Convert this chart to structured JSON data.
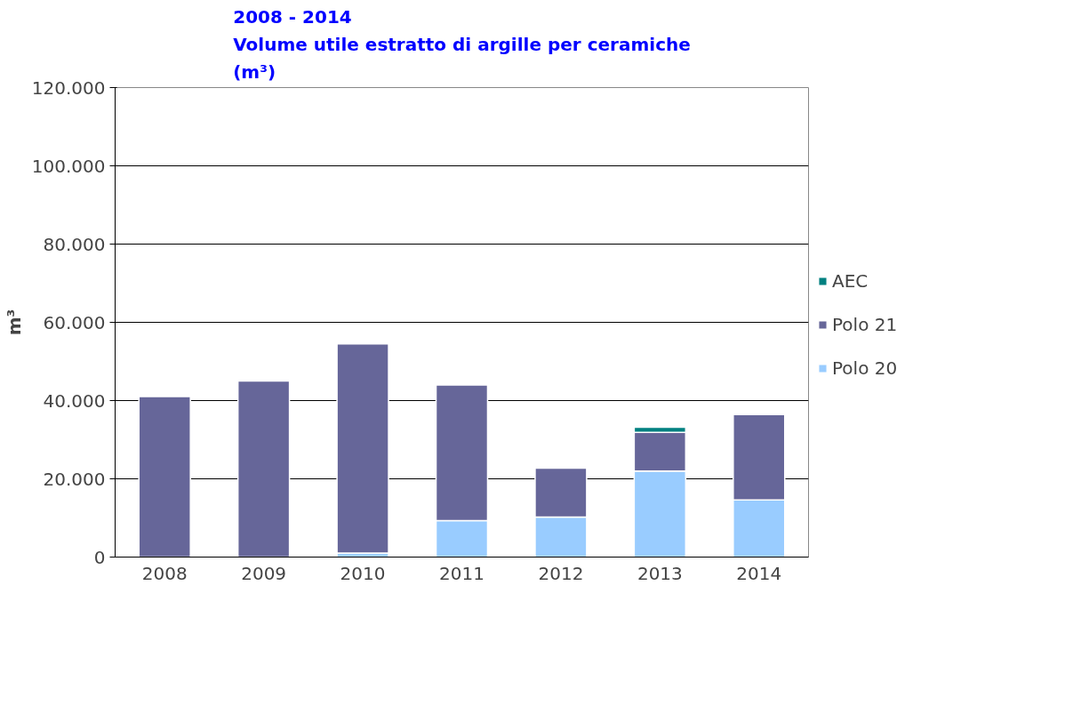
{
  "chart_data": {
    "type": "bar",
    "stacked": true,
    "title": "2008 - 2014\nVolume utile estratto di argille per ceramiche\n(m³)",
    "ylabel": "m³",
    "categories": [
      "2008",
      "2009",
      "2010",
      "2011",
      "2012",
      "2013",
      "2014"
    ],
    "series": [
      {
        "name": "Polo 20",
        "color": "#99ccff",
        "values": [
          null,
          null,
          1000,
          9300,
          10200,
          22000,
          14600
        ]
      },
      {
        "name": "Polo 21",
        "color": "#666699",
        "values": [
          41000,
          45000,
          53500,
          34700,
          12500,
          9900,
          21800
        ]
      },
      {
        "name": "AEC",
        "color": "#008080",
        "values": [
          null,
          null,
          null,
          null,
          null,
          1300,
          null
        ]
      }
    ],
    "ylim": [
      0,
      120000
    ],
    "yticks": [
      {
        "value": 0,
        "label": "0"
      },
      {
        "value": 20000,
        "label": "20.000"
      },
      {
        "value": 40000,
        "label": "40.000"
      },
      {
        "value": 60000,
        "label": "60.000"
      },
      {
        "value": 80000,
        "label": "80.000"
      },
      {
        "value": 100000,
        "label": "100.000"
      },
      {
        "value": 120000,
        "label": "120.000"
      }
    ],
    "grid": "y",
    "legend": "right"
  }
}
